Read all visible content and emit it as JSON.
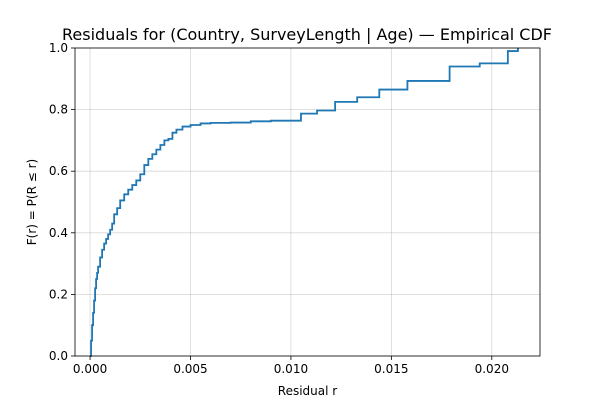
{
  "chart_data": {
    "type": "line",
    "title": "Residuals for (Country, SurveyLength | Age) — Empirical CDF",
    "xlabel": "Residual r",
    "ylabel": "F(r) = P(R ≤ r)",
    "xlim": [
      -0.00075,
      0.0224
    ],
    "ylim": [
      0.0,
      1.0
    ],
    "grid": true,
    "x_ticks": [
      0.0,
      0.005,
      0.01,
      0.015,
      0.02
    ],
    "x_tick_labels": [
      "0.000",
      "0.005",
      "0.010",
      "0.015",
      "0.020"
    ],
    "y_ticks": [
      0.0,
      0.2,
      0.4,
      0.6,
      0.8,
      1.0
    ],
    "y_tick_labels": [
      "0.0",
      "0.2",
      "0.4",
      "0.6",
      "0.8",
      "1.0"
    ],
    "colors": {
      "series": "#1f77b4"
    },
    "series": [
      {
        "step": "post",
        "x": [
          0.0,
          5e-05,
          0.0001,
          0.00015,
          0.0002,
          0.00025,
          0.0003,
          0.00035,
          0.0004,
          0.0005,
          0.0006,
          0.0007,
          0.0008,
          0.0009,
          0.001,
          0.0011,
          0.0012,
          0.00135,
          0.0015,
          0.0017,
          0.0019,
          0.0021,
          0.0023,
          0.0025,
          0.0027,
          0.0029,
          0.0031,
          0.0033,
          0.0035,
          0.0037,
          0.0039,
          0.0041,
          0.0043,
          0.0046,
          0.005,
          0.0055,
          0.006,
          0.007,
          0.008,
          0.009,
          0.0105,
          0.0113,
          0.0122,
          0.0133,
          0.0144,
          0.0158,
          0.0179,
          0.0194,
          0.0208,
          0.0213
        ],
        "y": [
          0.0,
          0.05,
          0.1,
          0.14,
          0.18,
          0.22,
          0.25,
          0.27,
          0.29,
          0.32,
          0.345,
          0.365,
          0.38,
          0.395,
          0.41,
          0.43,
          0.46,
          0.48,
          0.505,
          0.525,
          0.54,
          0.555,
          0.57,
          0.59,
          0.62,
          0.64,
          0.655,
          0.67,
          0.685,
          0.7,
          0.705,
          0.725,
          0.735,
          0.745,
          0.75,
          0.755,
          0.757,
          0.758,
          0.762,
          0.764,
          0.787,
          0.797,
          0.825,
          0.84,
          0.865,
          0.893,
          0.94,
          0.95,
          0.99,
          1.0
        ]
      }
    ]
  }
}
